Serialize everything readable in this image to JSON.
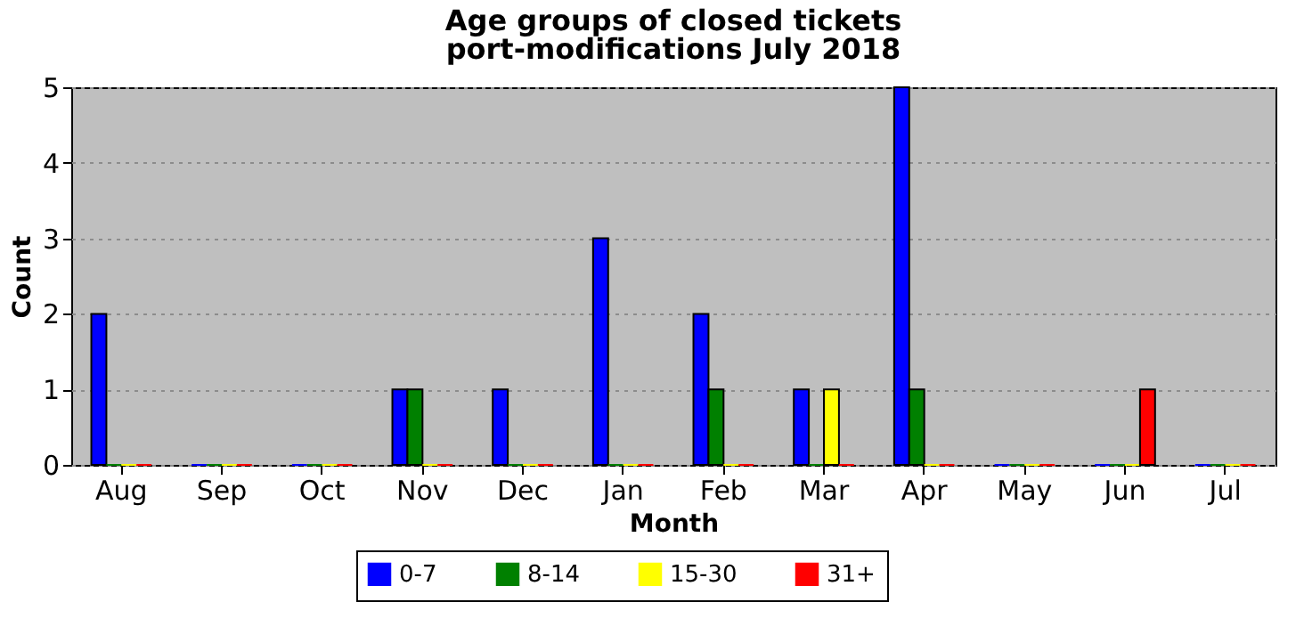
{
  "chart_data": {
    "type": "bar",
    "title": "Age groups of closed tickets",
    "subtitle": "port-modifications July 2018",
    "xlabel": "Month",
    "ylabel": "Count",
    "categories": [
      "Aug",
      "Sep",
      "Oct",
      "Nov",
      "Dec",
      "Jan",
      "Feb",
      "Mar",
      "Apr",
      "May",
      "Jun",
      "Jul"
    ],
    "series": [
      {
        "name": "0-7",
        "color": "#0000ff",
        "values": [
          2,
          0,
          0,
          1,
          1,
          3,
          2,
          1,
          5,
          0,
          0,
          0
        ]
      },
      {
        "name": "8-14",
        "color": "#008000",
        "values": [
          0,
          0,
          0,
          1,
          0,
          0,
          1,
          0,
          1,
          0,
          0,
          0
        ]
      },
      {
        "name": "15-30",
        "color": "#ffff00",
        "values": [
          0,
          0,
          0,
          0,
          0,
          0,
          0,
          1,
          0,
          0,
          0,
          0
        ]
      },
      {
        "name": "31+",
        "color": "#ff0000",
        "values": [
          0,
          0,
          0,
          0,
          0,
          0,
          0,
          0,
          0,
          0,
          1,
          0
        ]
      }
    ],
    "ylim": [
      0,
      5
    ],
    "yticks": [
      0,
      1,
      2,
      3,
      4,
      5
    ],
    "grid": "y",
    "legend": "bottom"
  }
}
